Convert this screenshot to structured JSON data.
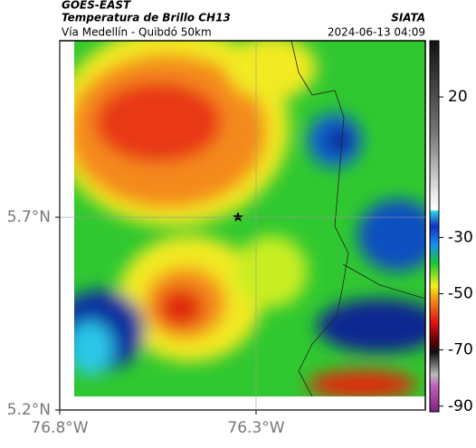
{
  "header": {
    "source": "GOES-EAST",
    "title": "Temperatura de Brillo CH13",
    "org": "SIATA",
    "subtitle": "Vía Medellín - Quibdó 50km",
    "timestamp": "2024-06-13 04:09"
  },
  "map": {
    "xlim": [
      -76.8,
      -75.869
    ],
    "ylim": [
      5.2,
      6.158
    ],
    "xticks": [
      {
        "value": -76.8,
        "label": "76.8°W"
      },
      {
        "value": -76.3,
        "label": "76.3°W"
      }
    ],
    "yticks": [
      {
        "value": 5.2,
        "label": "5.2°N"
      },
      {
        "value": 5.7,
        "label": "5.7°N"
      }
    ],
    "grid": true
  },
  "colorbar": {
    "lim": [
      -92,
      40
    ],
    "ticks": [
      20,
      -30,
      -50,
      -70,
      -90
    ]
  }
}
